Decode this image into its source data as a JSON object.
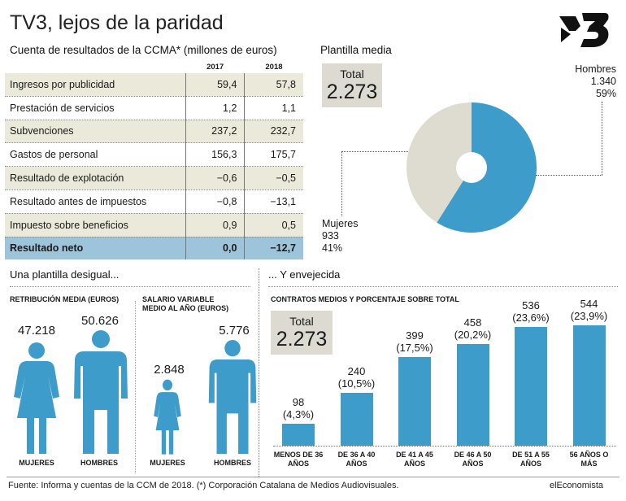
{
  "title": "TV3, lejos de la paridad",
  "colors": {
    "accent": "#3d9cc9",
    "light": "#dedbd0",
    "shade": "#ebe9d9",
    "net_row": "#9ec4dc"
  },
  "logo": {
    "icon": "tv3-logo-icon"
  },
  "table_section": {
    "heading": "Cuenta de resultados de la CCMA* (millones de euros)",
    "col_2017": "2017",
    "col_2018": "2018",
    "rows": [
      {
        "label": "Ingresos por publicidad",
        "v2017": "59,4",
        "v2018": "57,8"
      },
      {
        "label": "Prestación de servicios",
        "v2017": "1,2",
        "v2018": "1,1"
      },
      {
        "label": "Subvenciones",
        "v2017": "237,2",
        "v2018": "232,7"
      },
      {
        "label": "Gastos de personal",
        "v2017": "156,3",
        "v2018": "175,7"
      },
      {
        "label": "Resultado de explotación",
        "v2017": "−0,6",
        "v2018": "−0,5"
      },
      {
        "label": "Resultado antes de impuestos",
        "v2017": "−0,8",
        "v2018": "−13,1"
      },
      {
        "label": "Impuesto sobre beneficios",
        "v2017": "0,9",
        "v2018": "0,5"
      },
      {
        "label": "Resultado neto",
        "v2017": "0,0",
        "v2018": "−12,7"
      }
    ]
  },
  "plantilla": {
    "heading": "Plantilla media",
    "total_label": "Total",
    "total_value": "2.273",
    "hombres": {
      "label": "Hombres",
      "count": "1.340",
      "pct": "59%"
    },
    "mujeres": {
      "label": "Mujeres",
      "count": "933",
      "pct": "41%"
    }
  },
  "desigual": {
    "heading": "Una plantilla desigual...",
    "retribucion": {
      "heading_l1": "RETRIBUCIÓN MEDIA (EUROS)",
      "mujeres_value": "47.218",
      "hombres_value": "50.626",
      "mujeres_label": "MUJERES",
      "hombres_label": "HOMBRES"
    },
    "salario": {
      "heading_l1": "SALARIO VARIABLE",
      "heading_l2": "MEDIO AL AÑO (EUROS)",
      "mujeres_value": "2.848",
      "hombres_value": "5.776",
      "mujeres_label": "MUJERES",
      "hombres_label": "HOMBRES"
    }
  },
  "envejecida": {
    "heading": "... Y envejecida",
    "subheading": "CONTRATOS MEDIOS Y PORCENTAJE SOBRE TOTAL",
    "total_label": "Total",
    "total_value": "2.273"
  },
  "chart_data": [
    {
      "type": "pie",
      "title": "Plantilla media",
      "categories": [
        "Hombres",
        "Mujeres"
      ],
      "values": [
        1340,
        933
      ],
      "percent_labels": [
        "59%",
        "41%"
      ],
      "donut": true
    },
    {
      "type": "bar",
      "title": "CONTRATOS MEDIOS Y PORCENTAJE SOBRE TOTAL",
      "categories": [
        "MENOS DE 36 AÑOS",
        "DE 36 A 40 AÑOS",
        "DE 41 A 45 AÑOS",
        "DE 46 A 50 AÑOS",
        "DE 51 A 55 AÑOS",
        "56 AÑOS O MÁS"
      ],
      "values": [
        98,
        240,
        399,
        458,
        536,
        544
      ],
      "value_labels": [
        "98",
        "240",
        "399",
        "458",
        "536",
        "544"
      ],
      "percent_labels": [
        "(4,3%)",
        "(10,5%)",
        "(17,5%)",
        "(20,2%)",
        "(23,6%)",
        "(23,9%)"
      ],
      "category_lines": [
        [
          "MENOS DE 36",
          "AÑOS"
        ],
        [
          "DE 36 A 40",
          "AÑOS"
        ],
        [
          "DE 41 A 45",
          "AÑOS"
        ],
        [
          "DE 46 A 50",
          "AÑOS"
        ],
        [
          "DE 51 A 55",
          "AÑOS"
        ],
        [
          "56 AÑOS O",
          "MÁS"
        ]
      ],
      "ylim": [
        0,
        544
      ],
      "grid": false
    }
  ],
  "footer": {
    "source": "Fuente: Informa y cuentas de la CCM de 2018. (*) Corporación Catalana de Medios Audiovisuales.",
    "brand": "elEconomista"
  }
}
